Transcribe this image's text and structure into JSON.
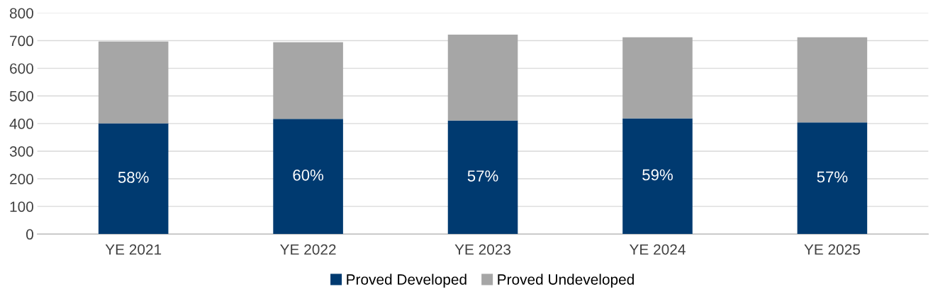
{
  "chart_data": {
    "type": "bar",
    "stacked": true,
    "categories": [
      "YE 2021",
      "YE 2022",
      "YE 2023",
      "YE 2024",
      "YE 2025"
    ],
    "series": [
      {
        "name": "Proved Developed",
        "color": "#003a70",
        "values": [
          401,
          417,
          411,
          419,
          404
        ]
      },
      {
        "name": "Proved Undeveloped",
        "color": "#a6a6a6",
        "values": [
          296,
          277,
          311,
          293,
          308
        ]
      }
    ],
    "ylim": [
      0,
      800
    ],
    "yticks": [
      0,
      100,
      200,
      300,
      400,
      500,
      600,
      700,
      800
    ],
    "annotations": [
      "58%",
      "60%",
      "57%",
      "59%",
      "57%"
    ],
    "grid": "y",
    "legend": "bottom"
  }
}
